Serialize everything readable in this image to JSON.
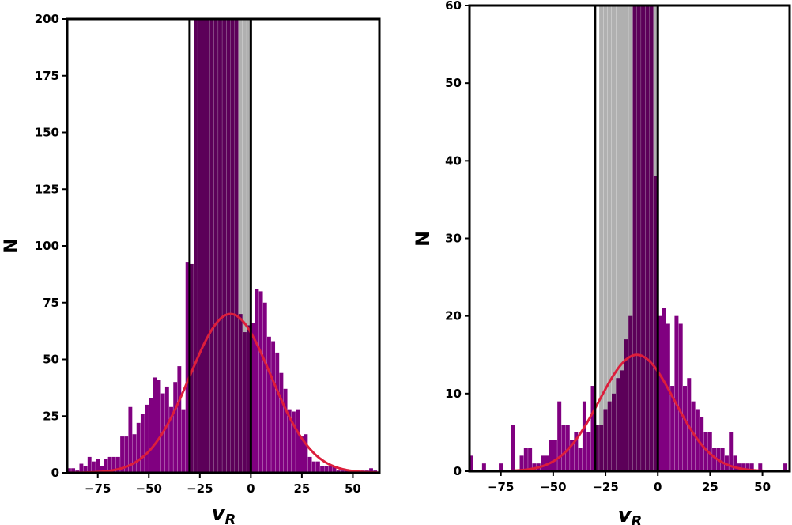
{
  "chart_data": [
    {
      "type": "bar",
      "xlabel_main": "v",
      "xlabel_sub": "R",
      "ylabel": "N",
      "xlim": [
        -90,
        63
      ],
      "ylim": [
        0,
        200
      ],
      "xticks": [
        -75,
        -50,
        -25,
        0,
        25,
        50
      ],
      "xtick_labels": [
        "−75",
        "−50",
        "−25",
        "0",
        "25",
        "50"
      ],
      "yticks": [
        0,
        25,
        50,
        75,
        100,
        125,
        150,
        175,
        200
      ],
      "yticks_labels": [
        "0",
        "25",
        "50",
        "75",
        "100",
        "125",
        "150",
        "175",
        "200"
      ],
      "grid": false,
      "vertical_lines": [
        -30,
        0
      ],
      "colors": {
        "purple": "#800080",
        "dark_purple": "#5c0059",
        "gray": "#b0b0b0",
        "curve": "#dc1e3c"
      },
      "bin_width": 2,
      "series": [
        {
          "role": "gray-full",
          "x": [
            -30,
            -28,
            -26,
            -24,
            -22,
            -20,
            -18,
            -16,
            -14,
            -12,
            -10,
            -8,
            -6,
            -4,
            -2
          ],
          "values": [
            92,
            200,
            200,
            200,
            200,
            200,
            200,
            200,
            200,
            200,
            200,
            200,
            200,
            200,
            200
          ]
        },
        {
          "role": "purple",
          "x": [
            -90,
            -88,
            -86,
            -84,
            -82,
            -80,
            -78,
            -76,
            -74,
            -72,
            -70,
            -68,
            -66,
            -64,
            -62,
            -60,
            -58,
            -56,
            -54,
            -52,
            -50,
            -48,
            -46,
            -44,
            -42,
            -40,
            -38,
            -36,
            -34,
            -32,
            -30,
            -28,
            -26,
            -24,
            -22,
            -20,
            -18,
            -16,
            -14,
            -12,
            -10,
            -8,
            -6,
            -4,
            -2,
            0,
            2,
            4,
            6,
            8,
            10,
            12,
            14,
            16,
            18,
            20,
            22,
            24,
            26,
            28,
            30,
            32,
            34,
            36,
            38,
            40,
            42,
            44,
            46,
            48,
            50,
            52,
            54,
            56,
            58,
            60
          ],
          "values": [
            2,
            2,
            1,
            4,
            3,
            7,
            5,
            6,
            3,
            6,
            7,
            7,
            7,
            16,
            16,
            29,
            17,
            22,
            26,
            30,
            33,
            42,
            41,
            35,
            38,
            29,
            40,
            47,
            28,
            93,
            92,
            200,
            200,
            200,
            200,
            200,
            200,
            200,
            200,
            200,
            200,
            70,
            62,
            70,
            67,
            66,
            81,
            80,
            75,
            60,
            58,
            53,
            44,
            37,
            28,
            27,
            28,
            16,
            17,
            7,
            5,
            5,
            3,
            3,
            3,
            3,
            1,
            1,
            1,
            1,
            1,
            1,
            1,
            1,
            2,
            1
          ]
        },
        {
          "role": "dark-purple-inside",
          "x": [
            -30,
            -28,
            -26,
            -24,
            -22,
            -20,
            -18,
            -16,
            -14,
            -12,
            -10,
            -8,
            -6,
            -4,
            -2
          ],
          "values": [
            92,
            200,
            200,
            200,
            200,
            200,
            200,
            200,
            200,
            200,
            200,
            200,
            70,
            62,
            65
          ]
        }
      ],
      "fit_curve": {
        "type": "gaussian",
        "mean": -10,
        "sigma": 20,
        "amplitude": 70
      }
    },
    {
      "type": "bar",
      "xlabel_main": "v",
      "xlabel_sub": "R",
      "ylabel": "N",
      "xlim": [
        -90,
        63
      ],
      "ylim": [
        0,
        60
      ],
      "xticks": [
        -75,
        -50,
        -25,
        0,
        25,
        50
      ],
      "xtick_labels": [
        "−75",
        "−50",
        "−25",
        "0",
        "25",
        "50"
      ],
      "yticks": [
        0,
        10,
        20,
        30,
        40,
        50,
        60
      ],
      "yticks_labels": [
        "0",
        "10",
        "20",
        "30",
        "40",
        "50",
        "60"
      ],
      "grid": false,
      "vertical_lines": [
        -30,
        0
      ],
      "colors": {
        "purple": "#800080",
        "dark_purple": "#5c0059",
        "gray": "#b0b0b0",
        "curve": "#dc1e3c"
      },
      "bin_width": 2,
      "series": [
        {
          "role": "gray-full",
          "x": [
            -30,
            -28,
            -26,
            -24,
            -22,
            -20,
            -18,
            -16,
            -14,
            -12,
            -10,
            -8,
            -6,
            -4,
            -2
          ],
          "values": [
            6,
            60,
            60,
            60,
            60,
            60,
            60,
            60,
            60,
            60,
            60,
            60,
            60,
            60,
            60
          ]
        },
        {
          "role": "purple",
          "x": [
            -90,
            -88,
            -86,
            -84,
            -82,
            -80,
            -78,
            -76,
            -74,
            -72,
            -70,
            -68,
            -66,
            -64,
            -62,
            -60,
            -58,
            -56,
            -54,
            -52,
            -50,
            -48,
            -46,
            -44,
            -42,
            -40,
            -38,
            -36,
            -34,
            -32,
            -30,
            -28,
            -26,
            -24,
            -22,
            -20,
            -18,
            -16,
            -14,
            -12,
            -10,
            -8,
            -6,
            -4,
            -2,
            0,
            2,
            4,
            6,
            8,
            10,
            12,
            14,
            16,
            18,
            20,
            22,
            24,
            26,
            28,
            30,
            32,
            34,
            36,
            38,
            40,
            42,
            44,
            46,
            48,
            50,
            52,
            54,
            56,
            58,
            60
          ],
          "values": [
            2,
            0,
            0,
            1,
            0,
            0,
            0,
            1,
            0,
            0,
            6,
            0,
            2,
            3,
            3,
            1,
            1,
            2,
            2,
            4,
            4,
            9,
            6,
            6,
            4,
            5,
            3,
            9,
            5,
            11,
            12,
            8,
            10,
            11,
            12,
            15,
            18,
            20,
            60,
            60,
            60,
            60,
            60,
            60,
            60,
            20,
            21,
            19,
            11,
            20,
            19,
            11,
            12,
            9,
            8,
            7,
            5,
            5,
            3,
            3,
            3,
            2,
            5,
            2,
            1,
            1,
            1,
            1,
            0,
            1,
            0,
            0,
            0,
            0,
            0,
            1
          ]
        },
        {
          "role": "dark-purple-inside",
          "x": [
            -30,
            -28,
            -26,
            -24,
            -22,
            -20,
            -18,
            -16,
            -14,
            -12,
            -10,
            -8,
            -6,
            -4,
            -2
          ],
          "values": [
            6,
            6,
            8,
            9,
            10,
            12,
            13,
            17,
            20,
            60,
            60,
            60,
            60,
            60,
            38
          ]
        }
      ],
      "fit_curve": {
        "type": "gaussian",
        "mean": -10,
        "sigma": 18,
        "amplitude": 15
      }
    }
  ]
}
